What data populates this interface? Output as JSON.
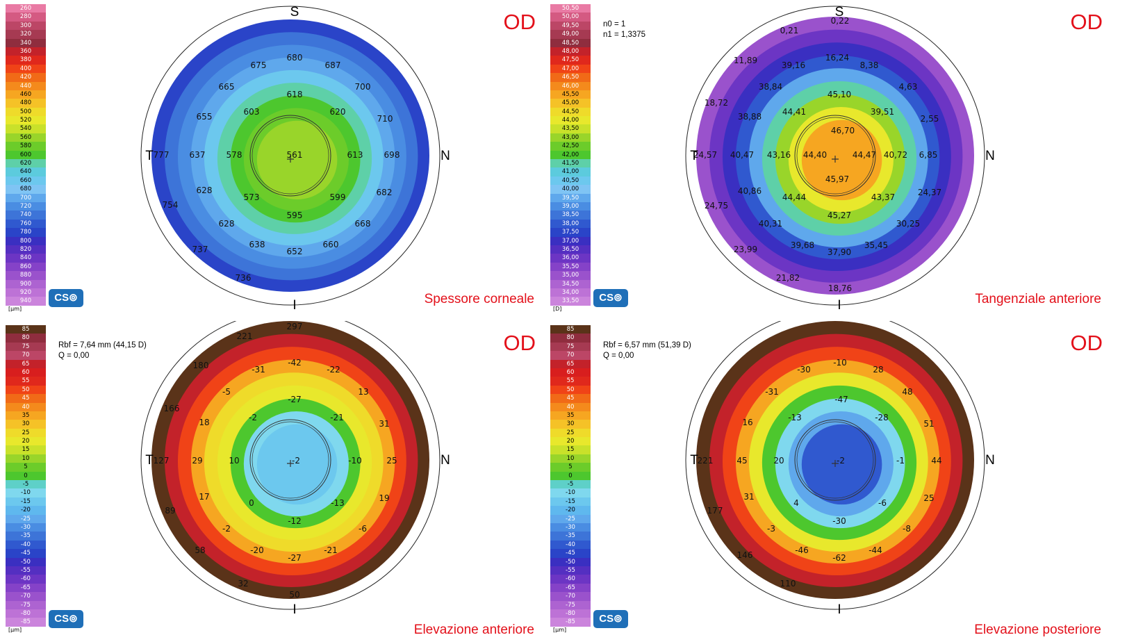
{
  "app": {
    "logo_text": "CS⊚"
  },
  "panels": [
    {
      "id": "thickness",
      "eye": "OD",
      "title": "Spessore corneale",
      "unit": "[μm]",
      "info": [],
      "compass": {
        "top": "S",
        "right": "N",
        "bottom": "I",
        "left": "T"
      },
      "scale": {
        "values": [
          "260",
          "280",
          "300",
          "320",
          "340",
          "360",
          "380",
          "400",
          "420",
          "440",
          "460",
          "480",
          "500",
          "520",
          "540",
          "560",
          "580",
          "600",
          "620",
          "640",
          "660",
          "680",
          "700",
          "720",
          "740",
          "760",
          "780",
          "800",
          "820",
          "840",
          "860",
          "880",
          "900",
          "920",
          "940"
        ],
        "colors": [
          "#e97aa4",
          "#d45a82",
          "#bc4666",
          "#a63a52",
          "#8f2d3e",
          "#c3222a",
          "#e0281c",
          "#f04317",
          "#f16a17",
          "#f48a1c",
          "#f6a621",
          "#f5c227",
          "#efdb2a",
          "#e8e82c",
          "#c9e12a",
          "#99d52a",
          "#6ccc2a",
          "#4dc72e",
          "#5ed0a8",
          "#5ccbdd",
          "#6cc8ee",
          "#7fc4f4",
          "#5fa8ec",
          "#4a8de2",
          "#3d74d8",
          "#3059cf",
          "#2a44c8",
          "#3a2fc1",
          "#542fc1",
          "#6c35c4",
          "#8542c8",
          "#9a52cc",
          "#ad63d1",
          "#bd72d6",
          "#cb84dc"
        ]
      },
      "map": {
        "bands": [
          "#2a44c8",
          "#3d74d8",
          "#4a8de2",
          "#5fa8ec",
          "#6cc8ee",
          "#5ed0a8",
          "#4dc72e",
          "#6ccc2a",
          "#99d52a"
        ]
      },
      "labels": [
        {
          "t": "680"
        },
        {
          "t": "675"
        },
        {
          "t": "687"
        },
        {
          "t": "665"
        },
        {
          "t": "700"
        },
        {
          "t": "618"
        },
        {
          "t": "603"
        },
        {
          "t": "620"
        },
        {
          "t": "655"
        },
        {
          "t": "710"
        },
        {
          "t": "637"
        },
        {
          "t": "578"
        },
        {
          "t": "561"
        },
        {
          "t": "613"
        },
        {
          "t": "698"
        },
        {
          "t": "777"
        },
        {
          "t": "628"
        },
        {
          "t": "573"
        },
        {
          "t": "599"
        },
        {
          "t": "682"
        },
        {
          "t": "754"
        },
        {
          "t": "595"
        },
        {
          "t": "628"
        },
        {
          "t": "668"
        },
        {
          "t": "638"
        },
        {
          "t": "660"
        },
        {
          "t": "652"
        },
        {
          "t": "737"
        },
        {
          "t": "736"
        }
      ]
    },
    {
      "id": "tangential",
      "eye": "OD",
      "title": "Tangenziale anteriore",
      "unit": "[D]",
      "info": [
        "n0 = 1",
        "n1 = 1,3375"
      ],
      "compass": {
        "top": "S",
        "right": "N",
        "bottom": "I",
        "left": "T"
      },
      "scale": {
        "values": [
          "50,50",
          "50,00",
          "49,50",
          "49,00",
          "48,50",
          "48,00",
          "47,50",
          "47,00",
          "46,50",
          "46,00",
          "45,50",
          "45,00",
          "44,50",
          "44,00",
          "43,50",
          "43,00",
          "42,50",
          "42,00",
          "41,50",
          "41,00",
          "40,50",
          "40,00",
          "39,50",
          "39,00",
          "38,50",
          "38,00",
          "37,50",
          "37,00",
          "36,50",
          "36,00",
          "35,50",
          "35,00",
          "34,50",
          "34,00",
          "33,50"
        ],
        "colors": [
          "#e97aa4",
          "#d45a82",
          "#bc4666",
          "#a63a52",
          "#8f2d3e",
          "#c3222a",
          "#e0281c",
          "#f04317",
          "#f16a17",
          "#f48a1c",
          "#f6a621",
          "#f5c227",
          "#efdb2a",
          "#e8e82c",
          "#c9e12a",
          "#99d52a",
          "#6ccc2a",
          "#4dc72e",
          "#5ed0a8",
          "#5ccbdd",
          "#6cc8ee",
          "#7fc4f4",
          "#5fa8ec",
          "#4a8de2",
          "#3d74d8",
          "#3059cf",
          "#2a44c8",
          "#3a2fc1",
          "#542fc1",
          "#6c35c4",
          "#8542c8",
          "#9a52cc",
          "#ad63d1",
          "#bd72d6",
          "#cb84dc"
        ]
      },
      "map": {
        "bands": [
          "#9a52cc",
          "#6c35c4",
          "#3a2fc1",
          "#3059cf",
          "#5fa8ec",
          "#5ed0a8",
          "#99d52a",
          "#e8e82c",
          "#f6a621"
        ]
      },
      "labels": [
        {
          "t": "0,21"
        },
        {
          "t": "0,22"
        },
        {
          "t": "11,89"
        },
        {
          "t": "16,24"
        },
        {
          "t": "39,16"
        },
        {
          "t": "8,38"
        },
        {
          "t": "38,84"
        },
        {
          "t": "45,10"
        },
        {
          "t": "4,63"
        },
        {
          "t": "18,72"
        },
        {
          "t": "44,41"
        },
        {
          "t": "39,51"
        },
        {
          "t": "38,88"
        },
        {
          "t": "2,55"
        },
        {
          "t": "46,70"
        },
        {
          "t": "24,57"
        },
        {
          "t": "40,47"
        },
        {
          "t": "43,16"
        },
        {
          "t": "44,40"
        },
        {
          "t": "44,47"
        },
        {
          "t": "40,72"
        },
        {
          "t": "6,85"
        },
        {
          "t": "45,97"
        },
        {
          "t": "40,86"
        },
        {
          "t": "24,37"
        },
        {
          "t": "44,44"
        },
        {
          "t": "43,37"
        },
        {
          "t": "24,75"
        },
        {
          "t": "45,27"
        },
        {
          "t": "40,31"
        },
        {
          "t": "30,25"
        },
        {
          "t": "39,68"
        },
        {
          "t": "35,45"
        },
        {
          "t": "37,90"
        },
        {
          "t": "23,99"
        },
        {
          "t": "21,82"
        },
        {
          "t": "18,76"
        }
      ]
    },
    {
      "id": "anterior_elevation",
      "eye": "OD",
      "title": "Elevazione anteriore",
      "unit": "[μm]",
      "info": [
        "Rbf = 7,64 mm (44,15 D)",
        "Q = 0,00"
      ],
      "compass": {
        "top": "S",
        "right": "N",
        "bottom": "I",
        "left": "T"
      },
      "scale": {
        "values": [
          "85",
          "80",
          "75",
          "70",
          "65",
          "60",
          "55",
          "50",
          "45",
          "40",
          "35",
          "30",
          "25",
          "20",
          "15",
          "10",
          "5",
          "0",
          "-5",
          "-10",
          "-15",
          "-20",
          "-25",
          "-30",
          "-35",
          "-40",
          "-45",
          "-50",
          "-55",
          "-60",
          "-65",
          "-70",
          "-75",
          "-80",
          "-85"
        ],
        "colors": [
          "#5a3319",
          "#8f2d3e",
          "#a63a52",
          "#bc4666",
          "#c3222a",
          "#d81e1e",
          "#e0281c",
          "#f04317",
          "#f16a17",
          "#f48a1c",
          "#f6a621",
          "#f5c227",
          "#efdb2a",
          "#e8e82c",
          "#c9e12a",
          "#99d52a",
          "#6ccc2a",
          "#4dc72e",
          "#5ed0c8",
          "#7fd8ee",
          "#6cc8ee",
          "#5fb8ee",
          "#5fa8ec",
          "#4a8de2",
          "#3d74d8",
          "#3059cf",
          "#2a44c8",
          "#3a2fc1",
          "#542fc1",
          "#6c35c4",
          "#8542c8",
          "#9a52cc",
          "#ad63d1",
          "#bd72d6",
          "#cb84dc"
        ]
      },
      "map": {
        "bands": [
          "#5a3319",
          "#c3222a",
          "#f04317",
          "#f6a621",
          "#efdb2a",
          "#e8e82c",
          "#4dc72e",
          "#7fd8ee",
          "#6cc8ee"
        ]
      },
      "labels": [
        {
          "t": "297"
        },
        {
          "t": "221"
        },
        {
          "t": "-42"
        },
        {
          "t": "180"
        },
        {
          "t": "-31"
        },
        {
          "t": "-22"
        },
        {
          "t": "-5"
        },
        {
          "t": "-27"
        },
        {
          "t": "13"
        },
        {
          "t": "166"
        },
        {
          "t": "-2"
        },
        {
          "t": "-21"
        },
        {
          "t": "18"
        },
        {
          "t": "31"
        },
        {
          "t": "127"
        },
        {
          "t": "29"
        },
        {
          "t": "10"
        },
        {
          "t": "-2"
        },
        {
          "t": "-10"
        },
        {
          "t": "25"
        },
        {
          "t": "17"
        },
        {
          "t": "19"
        },
        {
          "t": "0"
        },
        {
          "t": "-13"
        },
        {
          "t": "89"
        },
        {
          "t": "-12"
        },
        {
          "t": "-2"
        },
        {
          "t": "-6"
        },
        {
          "t": "58"
        },
        {
          "t": "-20"
        },
        {
          "t": "-27"
        },
        {
          "t": "-21"
        },
        {
          "t": "32"
        },
        {
          "t": "50"
        }
      ]
    },
    {
      "id": "posterior_elevation",
      "eye": "OD",
      "title": "Elevazione posteriore",
      "unit": "[μm]",
      "info": [
        "Rbf = 6,57 mm (51,39 D)",
        "Q = 0,00"
      ],
      "compass": {
        "top": "S",
        "right": "N",
        "bottom": "I",
        "left": "T"
      },
      "scale": {
        "values": [
          "85",
          "80",
          "75",
          "70",
          "65",
          "60",
          "55",
          "50",
          "45",
          "40",
          "35",
          "30",
          "25",
          "20",
          "15",
          "10",
          "5",
          "0",
          "-5",
          "-10",
          "-15",
          "-20",
          "-25",
          "-30",
          "-35",
          "-40",
          "-45",
          "-50",
          "-55",
          "-60",
          "-65",
          "-70",
          "-75",
          "-80",
          "-85"
        ],
        "colors": [
          "#5a3319",
          "#8f2d3e",
          "#a63a52",
          "#bc4666",
          "#c3222a",
          "#d81e1e",
          "#e0281c",
          "#f04317",
          "#f16a17",
          "#f48a1c",
          "#f6a621",
          "#f5c227",
          "#efdb2a",
          "#e8e82c",
          "#c9e12a",
          "#99d52a",
          "#6ccc2a",
          "#4dc72e",
          "#5ed0c8",
          "#7fd8ee",
          "#6cc8ee",
          "#5fb8ee",
          "#5fa8ec",
          "#4a8de2",
          "#3d74d8",
          "#3059cf",
          "#2a44c8",
          "#3a2fc1",
          "#542fc1",
          "#6c35c4",
          "#8542c8",
          "#9a52cc",
          "#ad63d1",
          "#bd72d6",
          "#cb84dc"
        ]
      },
      "map": {
        "bands": [
          "#5a3319",
          "#c3222a",
          "#f04317",
          "#f6a621",
          "#e8e82c",
          "#4dc72e",
          "#7fd8ee",
          "#5fa8ec",
          "#3059cf"
        ]
      },
      "labels": [
        {
          "t": "-10"
        },
        {
          "t": "-30"
        },
        {
          "t": "28"
        },
        {
          "t": "-31"
        },
        {
          "t": "-47"
        },
        {
          "t": "48"
        },
        {
          "t": "16"
        },
        {
          "t": "-13"
        },
        {
          "t": "-28"
        },
        {
          "t": "51"
        },
        {
          "t": "221"
        },
        {
          "t": "45"
        },
        {
          "t": "20"
        },
        {
          "t": "-2"
        },
        {
          "t": "-1"
        },
        {
          "t": "44"
        },
        {
          "t": "31"
        },
        {
          "t": "4"
        },
        {
          "t": "-6"
        },
        {
          "t": "25"
        },
        {
          "t": "177"
        },
        {
          "t": "-30"
        },
        {
          "t": "-3"
        },
        {
          "t": "-8"
        },
        {
          "t": "146"
        },
        {
          "t": "-46"
        },
        {
          "t": "-44"
        },
        {
          "t": "-62"
        },
        {
          "t": "110"
        }
      ]
    }
  ]
}
